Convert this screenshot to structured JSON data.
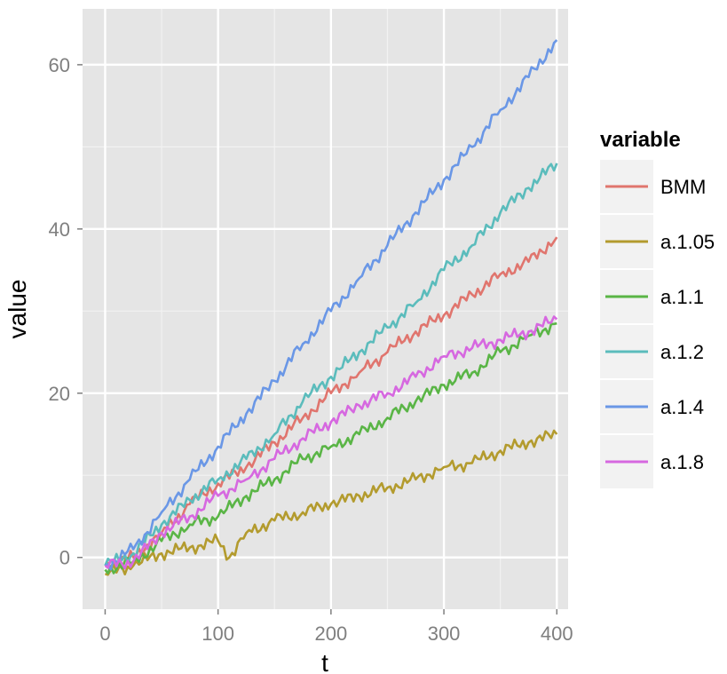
{
  "chart_data": {
    "type": "line",
    "xlabel": "t",
    "ylabel": "value",
    "xlim": [
      -20,
      410
    ],
    "ylim": [
      -6.3,
      66.8
    ],
    "x_ticks": [
      0,
      100,
      200,
      300,
      400
    ],
    "y_ticks": [
      0,
      20,
      40,
      60
    ],
    "grid": true,
    "legend": {
      "title": "variable",
      "position": "right"
    },
    "series": [
      {
        "name": "BMM",
        "color": "#e0756e",
        "x": [
          0,
          25,
          50,
          75,
          100,
          125,
          150,
          175,
          200,
          225,
          250,
          275,
          300,
          325,
          350,
          375,
          400
        ],
        "y": [
          -1,
          0,
          3,
          6.5,
          9,
          11,
          14,
          17,
          20,
          22.5,
          25,
          27.5,
          29.5,
          32,
          34.5,
          36,
          39
        ]
      },
      {
        "name": "a.1.05",
        "color": "#b39b2e",
        "x": [
          0,
          25,
          50,
          75,
          100,
          110,
          125,
          150,
          175,
          200,
          225,
          250,
          275,
          300,
          325,
          350,
          375,
          400
        ],
        "y": [
          -2,
          -1,
          0.5,
          1.2,
          2,
          0,
          3,
          4.5,
          5.5,
          6.5,
          7.5,
          8.5,
          9.5,
          11,
          11.5,
          13,
          14,
          15
        ]
      },
      {
        "name": "a.1.1",
        "color": "#5ab546",
        "x": [
          0,
          25,
          50,
          75,
          100,
          125,
          150,
          175,
          200,
          225,
          250,
          275,
          300,
          325,
          350,
          375,
          400
        ],
        "y": [
          -1.5,
          -0.5,
          2,
          4,
          5,
          7.5,
          9.5,
          12,
          13.5,
          15,
          17,
          19,
          21,
          22.5,
          25,
          27,
          28.5
        ]
      },
      {
        "name": "a.1.2",
        "color": "#5bbcbc",
        "x": [
          0,
          25,
          50,
          75,
          100,
          125,
          150,
          175,
          200,
          225,
          250,
          275,
          300,
          325,
          350,
          375,
          400
        ],
        "y": [
          -1,
          0.5,
          4,
          7,
          9.5,
          12,
          15,
          19,
          22,
          25,
          28,
          31,
          35,
          38,
          42,
          45,
          48
        ]
      },
      {
        "name": "a.1.4",
        "color": "#6a97e6",
        "x": [
          0,
          25,
          50,
          75,
          100,
          125,
          150,
          175,
          200,
          225,
          250,
          275,
          300,
          325,
          350,
          375,
          400
        ],
        "y": [
          -1,
          1,
          5.5,
          9.5,
          13.5,
          17.5,
          21.5,
          26,
          30,
          34,
          38,
          42,
          46,
          50,
          54.5,
          58.5,
          63
        ]
      },
      {
        "name": "a.1.8",
        "color": "#d668e0",
        "x": [
          0,
          25,
          50,
          75,
          100,
          125,
          150,
          175,
          200,
          225,
          250,
          275,
          300,
          325,
          350,
          375,
          400
        ],
        "y": [
          -1,
          -0.5,
          3,
          5,
          7.5,
          9.5,
          12,
          14.5,
          16.5,
          18.5,
          20,
          22,
          24.5,
          25.5,
          26.5,
          27.5,
          29
        ]
      }
    ]
  }
}
